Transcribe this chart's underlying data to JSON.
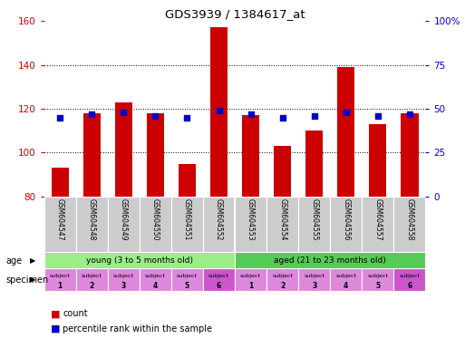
{
  "title": "GDS3939 / 1384617_at",
  "samples": [
    "GSM604547",
    "GSM604548",
    "GSM604549",
    "GSM604550",
    "GSM604551",
    "GSM604552",
    "GSM604553",
    "GSM604554",
    "GSM604555",
    "GSM604556",
    "GSM604557",
    "GSM604558"
  ],
  "counts": [
    93,
    118,
    123,
    118,
    95,
    157,
    117,
    103,
    110,
    139,
    113,
    118
  ],
  "percentile_ranks": [
    45,
    47,
    48,
    46,
    45,
    49,
    47,
    45,
    46,
    48,
    46,
    47
  ],
  "ylim_left": [
    80,
    160
  ],
  "ylim_right": [
    0,
    100
  ],
  "yticks_left": [
    80,
    100,
    120,
    140,
    160
  ],
  "yticks_right": [
    0,
    25,
    50,
    75,
    100
  ],
  "bar_color": "#cc0000",
  "dot_color": "#0000cc",
  "bar_bottom": 80,
  "age_groups": [
    {
      "label": "young (3 to 5 months old)",
      "start": 0,
      "end": 6,
      "color": "#99ee99"
    },
    {
      "label": "aged (21 to 23 months old)",
      "start": 6,
      "end": 12,
      "color": "#66cc66"
    }
  ],
  "specimens": [
    "subject\n1",
    "subject\n2",
    "subject\n3",
    "subject\n4",
    "subject\n5",
    "subject\n6",
    "subject\n1",
    "subject\n2",
    "subject\n3",
    "subject\n4",
    "subject\n5",
    "subject\n6"
  ],
  "specimen_colors": [
    "#dd88dd",
    "#dd88dd",
    "#dd88dd",
    "#dd88dd",
    "#dd88dd",
    "#cc55cc",
    "#dd88dd",
    "#dd88dd",
    "#dd88dd",
    "#dd88dd",
    "#dd88dd",
    "#cc55cc"
  ],
  "bar_color_red": "#cc0000",
  "dot_color_blue": "#0000cc",
  "tick_color_left": "#cc0000",
  "tick_color_right": "#0000cc",
  "background_color": "#ffffff",
  "xticklabel_bg": "#cccccc",
  "age_young_color": "#99ee88",
  "age_aged_color": "#55cc55"
}
